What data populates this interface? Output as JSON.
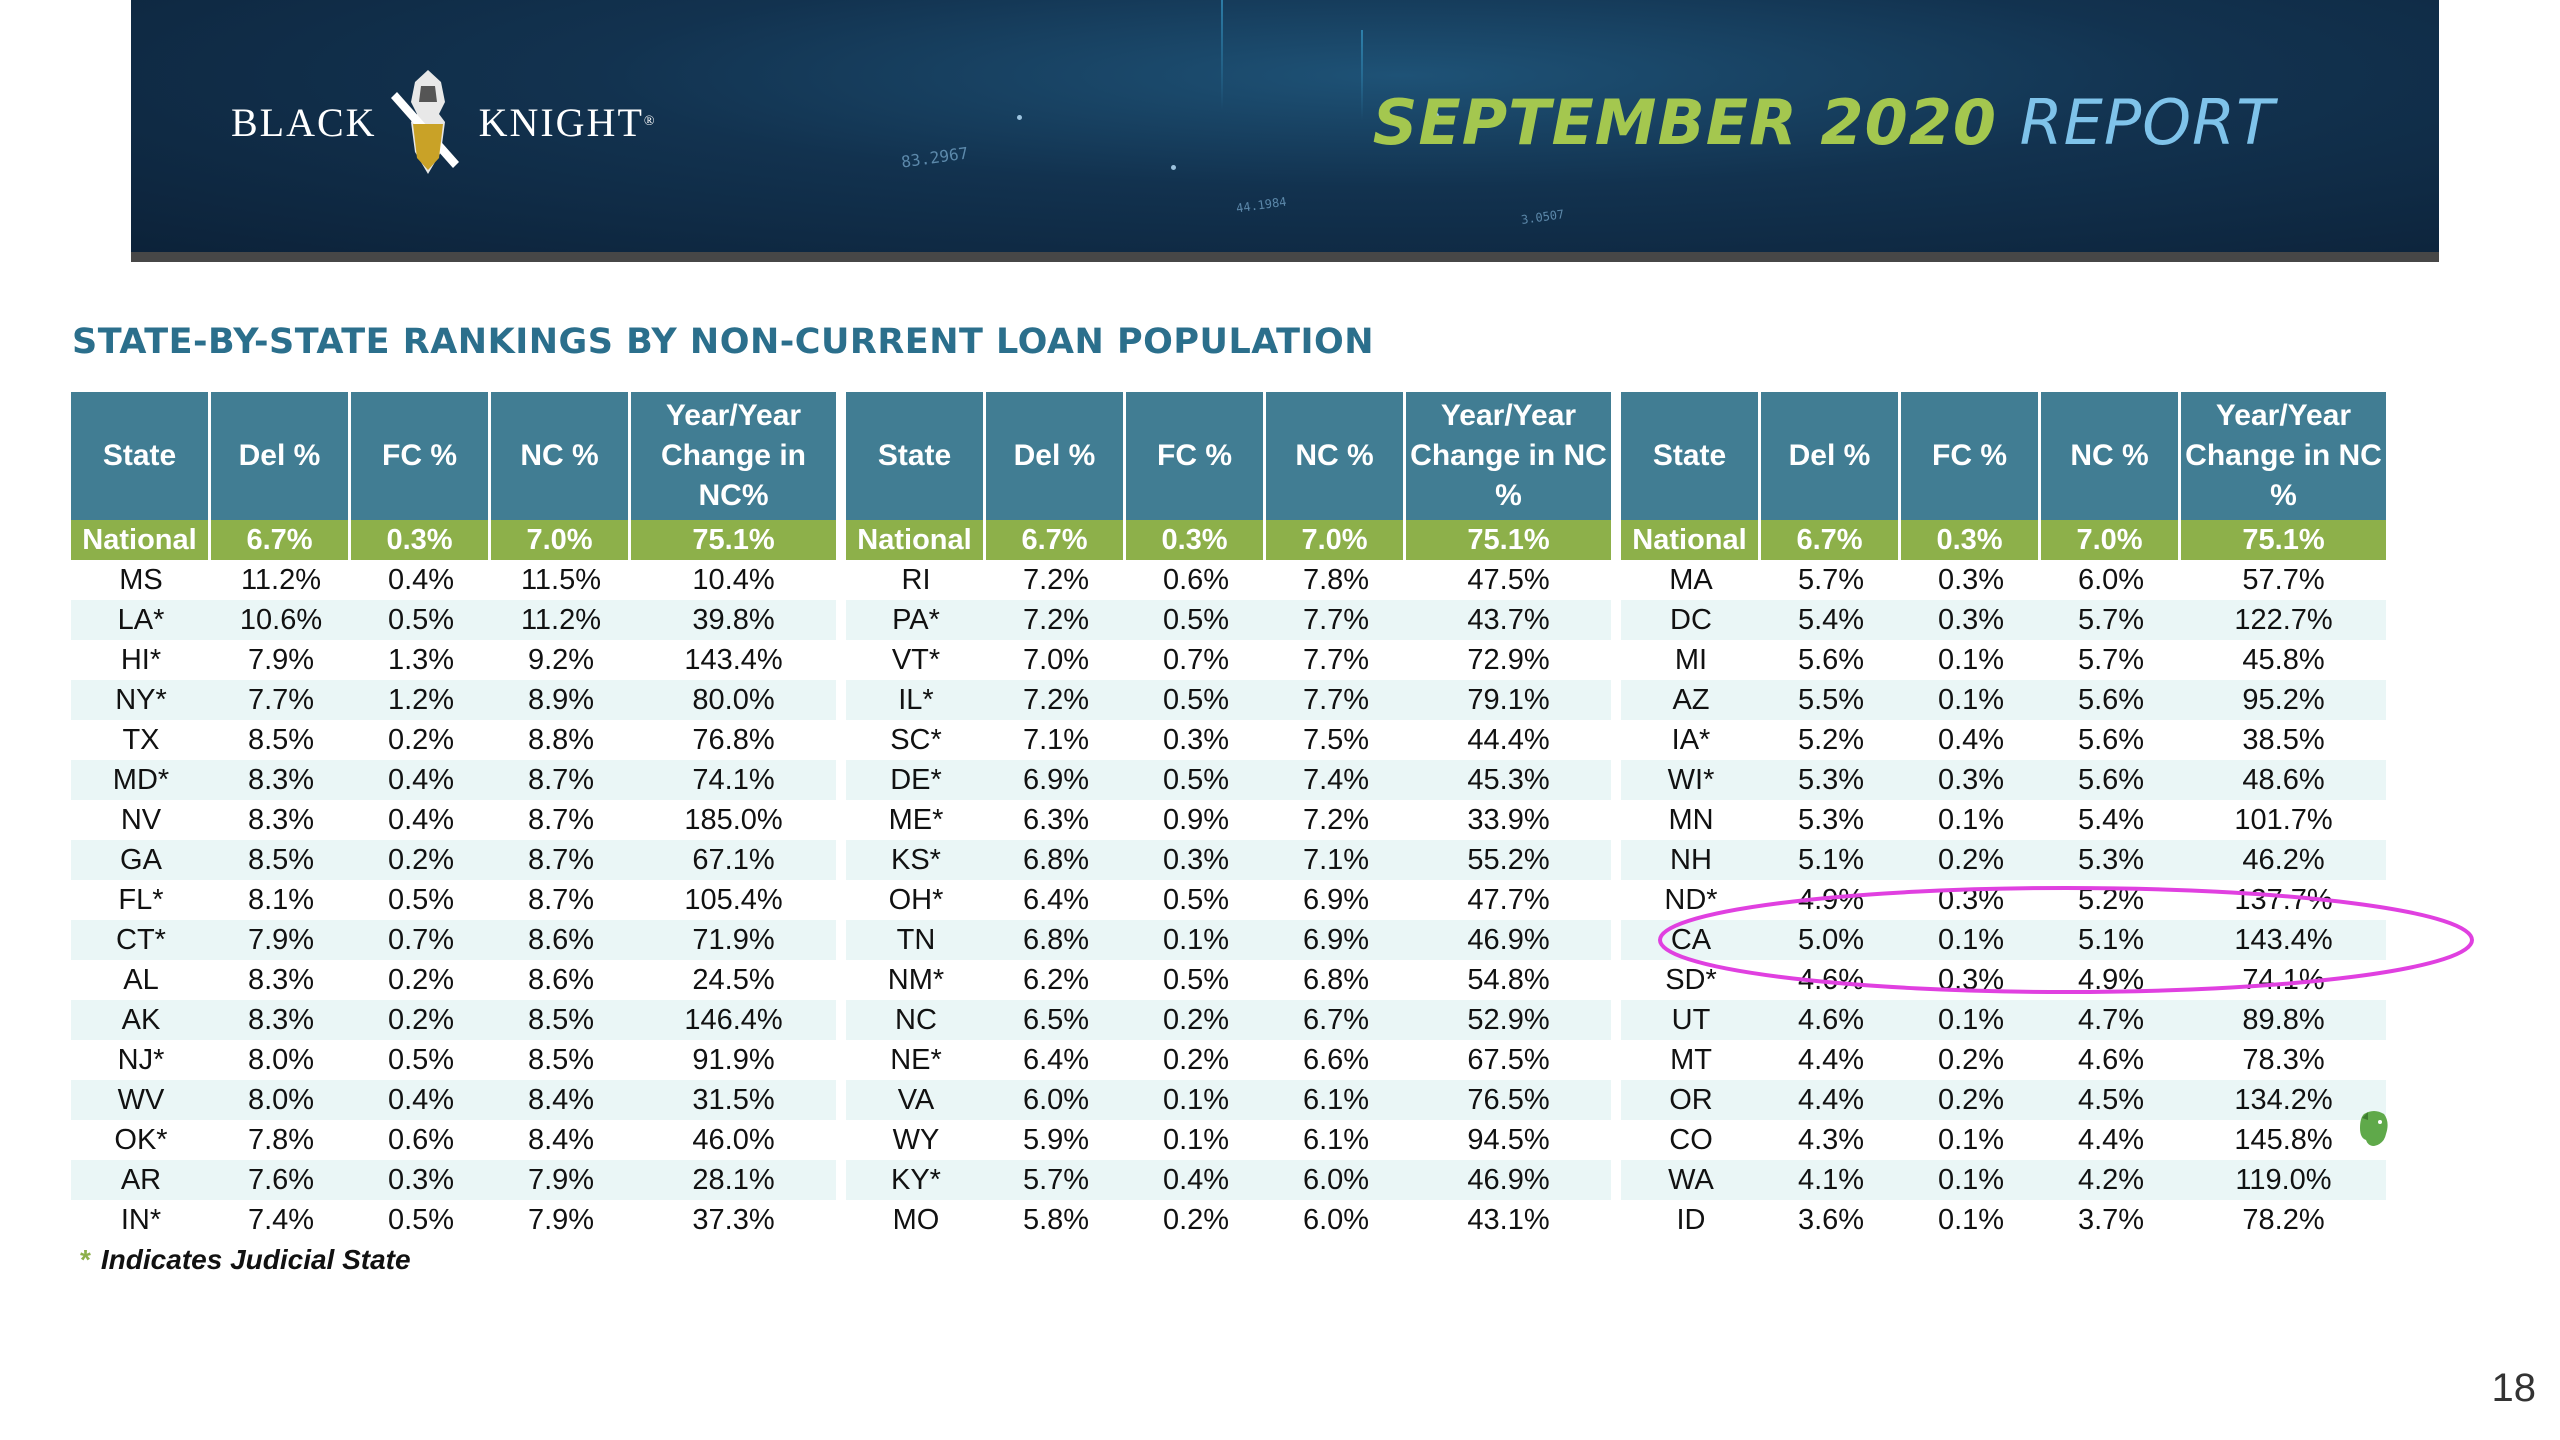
{
  "banner": {
    "logo_left": "BLACK",
    "logo_right": "KNIGHT",
    "logo_reg": "®",
    "title_part1": "SEPTEMBER 2020",
    "title_part2": "REPORT",
    "bg_figures": [
      "83.2967",
      "44.1984",
      "3.0507"
    ],
    "colors": {
      "title_green": "#a4c74f",
      "title_blue": "#7fc3ea",
      "banner_bg": "#12324f"
    }
  },
  "section_title": "STATE-BY-STATE RANKINGS BY NON-CURRENT LOAN POPULATION",
  "table_headers": [
    "State",
    "Del %",
    "FC %",
    "NC %",
    "Year/Year Change in NC%"
  ],
  "table_headers_alt": [
    "State",
    "Del %",
    "FC %",
    "NC %",
    "Year/Year Change in NC %"
  ],
  "national_row": [
    "National",
    "6.7%",
    "0.3%",
    "7.0%",
    "75.1%"
  ],
  "tables": [
    {
      "rows": [
        [
          "MS",
          "11.2%",
          "0.4%",
          "11.5%",
          "10.4%"
        ],
        [
          "LA*",
          "10.6%",
          "0.5%",
          "11.2%",
          "39.8%"
        ],
        [
          "HI*",
          "7.9%",
          "1.3%",
          "9.2%",
          "143.4%"
        ],
        [
          "NY*",
          "7.7%",
          "1.2%",
          "8.9%",
          "80.0%"
        ],
        [
          "TX",
          "8.5%",
          "0.2%",
          "8.8%",
          "76.8%"
        ],
        [
          "MD*",
          "8.3%",
          "0.4%",
          "8.7%",
          "74.1%"
        ],
        [
          "NV",
          "8.3%",
          "0.4%",
          "8.7%",
          "185.0%"
        ],
        [
          "GA",
          "8.5%",
          "0.2%",
          "8.7%",
          "67.1%"
        ],
        [
          "FL*",
          "8.1%",
          "0.5%",
          "8.7%",
          "105.4%"
        ],
        [
          "CT*",
          "7.9%",
          "0.7%",
          "8.6%",
          "71.9%"
        ],
        [
          "AL",
          "8.3%",
          "0.2%",
          "8.6%",
          "24.5%"
        ],
        [
          "AK",
          "8.3%",
          "0.2%",
          "8.5%",
          "146.4%"
        ],
        [
          "NJ*",
          "8.0%",
          "0.5%",
          "8.5%",
          "91.9%"
        ],
        [
          "WV",
          "8.0%",
          "0.4%",
          "8.4%",
          "31.5%"
        ],
        [
          "OK*",
          "7.8%",
          "0.6%",
          "8.4%",
          "46.0%"
        ],
        [
          "AR",
          "7.6%",
          "0.3%",
          "7.9%",
          "28.1%"
        ],
        [
          "IN*",
          "7.4%",
          "0.5%",
          "7.9%",
          "37.3%"
        ]
      ]
    },
    {
      "rows": [
        [
          "RI",
          "7.2%",
          "0.6%",
          "7.8%",
          "47.5%"
        ],
        [
          "PA*",
          "7.2%",
          "0.5%",
          "7.7%",
          "43.7%"
        ],
        [
          "VT*",
          "7.0%",
          "0.7%",
          "7.7%",
          "72.9%"
        ],
        [
          "IL*",
          "7.2%",
          "0.5%",
          "7.7%",
          "79.1%"
        ],
        [
          "SC*",
          "7.1%",
          "0.3%",
          "7.5%",
          "44.4%"
        ],
        [
          "DE*",
          "6.9%",
          "0.5%",
          "7.4%",
          "45.3%"
        ],
        [
          "ME*",
          "6.3%",
          "0.9%",
          "7.2%",
          "33.9%"
        ],
        [
          "KS*",
          "6.8%",
          "0.3%",
          "7.1%",
          "55.2%"
        ],
        [
          "OH*",
          "6.4%",
          "0.5%",
          "6.9%",
          "47.7%"
        ],
        [
          "TN",
          "6.8%",
          "0.1%",
          "6.9%",
          "46.9%"
        ],
        [
          "NM*",
          "6.2%",
          "0.5%",
          "6.8%",
          "54.8%"
        ],
        [
          "NC",
          "6.5%",
          "0.2%",
          "6.7%",
          "52.9%"
        ],
        [
          "NE*",
          "6.4%",
          "0.2%",
          "6.6%",
          "67.5%"
        ],
        [
          "VA",
          "6.0%",
          "0.1%",
          "6.1%",
          "76.5%"
        ],
        [
          "WY",
          "5.9%",
          "0.1%",
          "6.1%",
          "94.5%"
        ],
        [
          "KY*",
          "5.7%",
          "0.4%",
          "6.0%",
          "46.9%"
        ],
        [
          "MO",
          "5.8%",
          "0.2%",
          "6.0%",
          "43.1%"
        ]
      ]
    },
    {
      "rows": [
        [
          "MA",
          "5.7%",
          "0.3%",
          "6.0%",
          "57.7%"
        ],
        [
          "DC",
          "5.4%",
          "0.3%",
          "5.7%",
          "122.7%"
        ],
        [
          "MI",
          "5.6%",
          "0.1%",
          "5.7%",
          "45.8%"
        ],
        [
          "AZ",
          "5.5%",
          "0.1%",
          "5.6%",
          "95.2%"
        ],
        [
          "IA*",
          "5.2%",
          "0.4%",
          "5.6%",
          "38.5%"
        ],
        [
          "WI*",
          "5.3%",
          "0.3%",
          "5.6%",
          "48.6%"
        ],
        [
          "MN",
          "5.3%",
          "0.1%",
          "5.4%",
          "101.7%"
        ],
        [
          "NH",
          "5.1%",
          "0.2%",
          "5.3%",
          "46.2%"
        ],
        [
          "ND*",
          "4.9%",
          "0.3%",
          "5.2%",
          "137.7%"
        ],
        [
          "CA",
          "5.0%",
          "0.1%",
          "5.1%",
          "143.4%"
        ],
        [
          "SD*",
          "4.6%",
          "0.3%",
          "4.9%",
          "74.1%"
        ],
        [
          "UT",
          "4.6%",
          "0.1%",
          "4.7%",
          "89.8%"
        ],
        [
          "MT",
          "4.4%",
          "0.2%",
          "4.6%",
          "78.3%"
        ],
        [
          "OR",
          "4.4%",
          "0.2%",
          "4.5%",
          "134.2%"
        ],
        [
          "CO",
          "4.3%",
          "0.1%",
          "4.4%",
          "145.8%"
        ],
        [
          "WA",
          "4.1%",
          "0.1%",
          "4.2%",
          "119.0%"
        ],
        [
          "ID",
          "3.6%",
          "0.1%",
          "3.7%",
          "78.2%"
        ]
      ]
    }
  ],
  "footnote": {
    "star": "*",
    "text": "Indicates Judicial State"
  },
  "annotation": {
    "shape": "ellipse",
    "color": "#e040e0",
    "highlights_row": "CA"
  },
  "evernote_icon": "evernote-elephant-icon",
  "page_number": "18",
  "colors": {
    "header_bg": "#417d93",
    "national_bg": "#8db04a",
    "stripe": "#eaf6f6",
    "section_title": "#2b6f8c"
  }
}
